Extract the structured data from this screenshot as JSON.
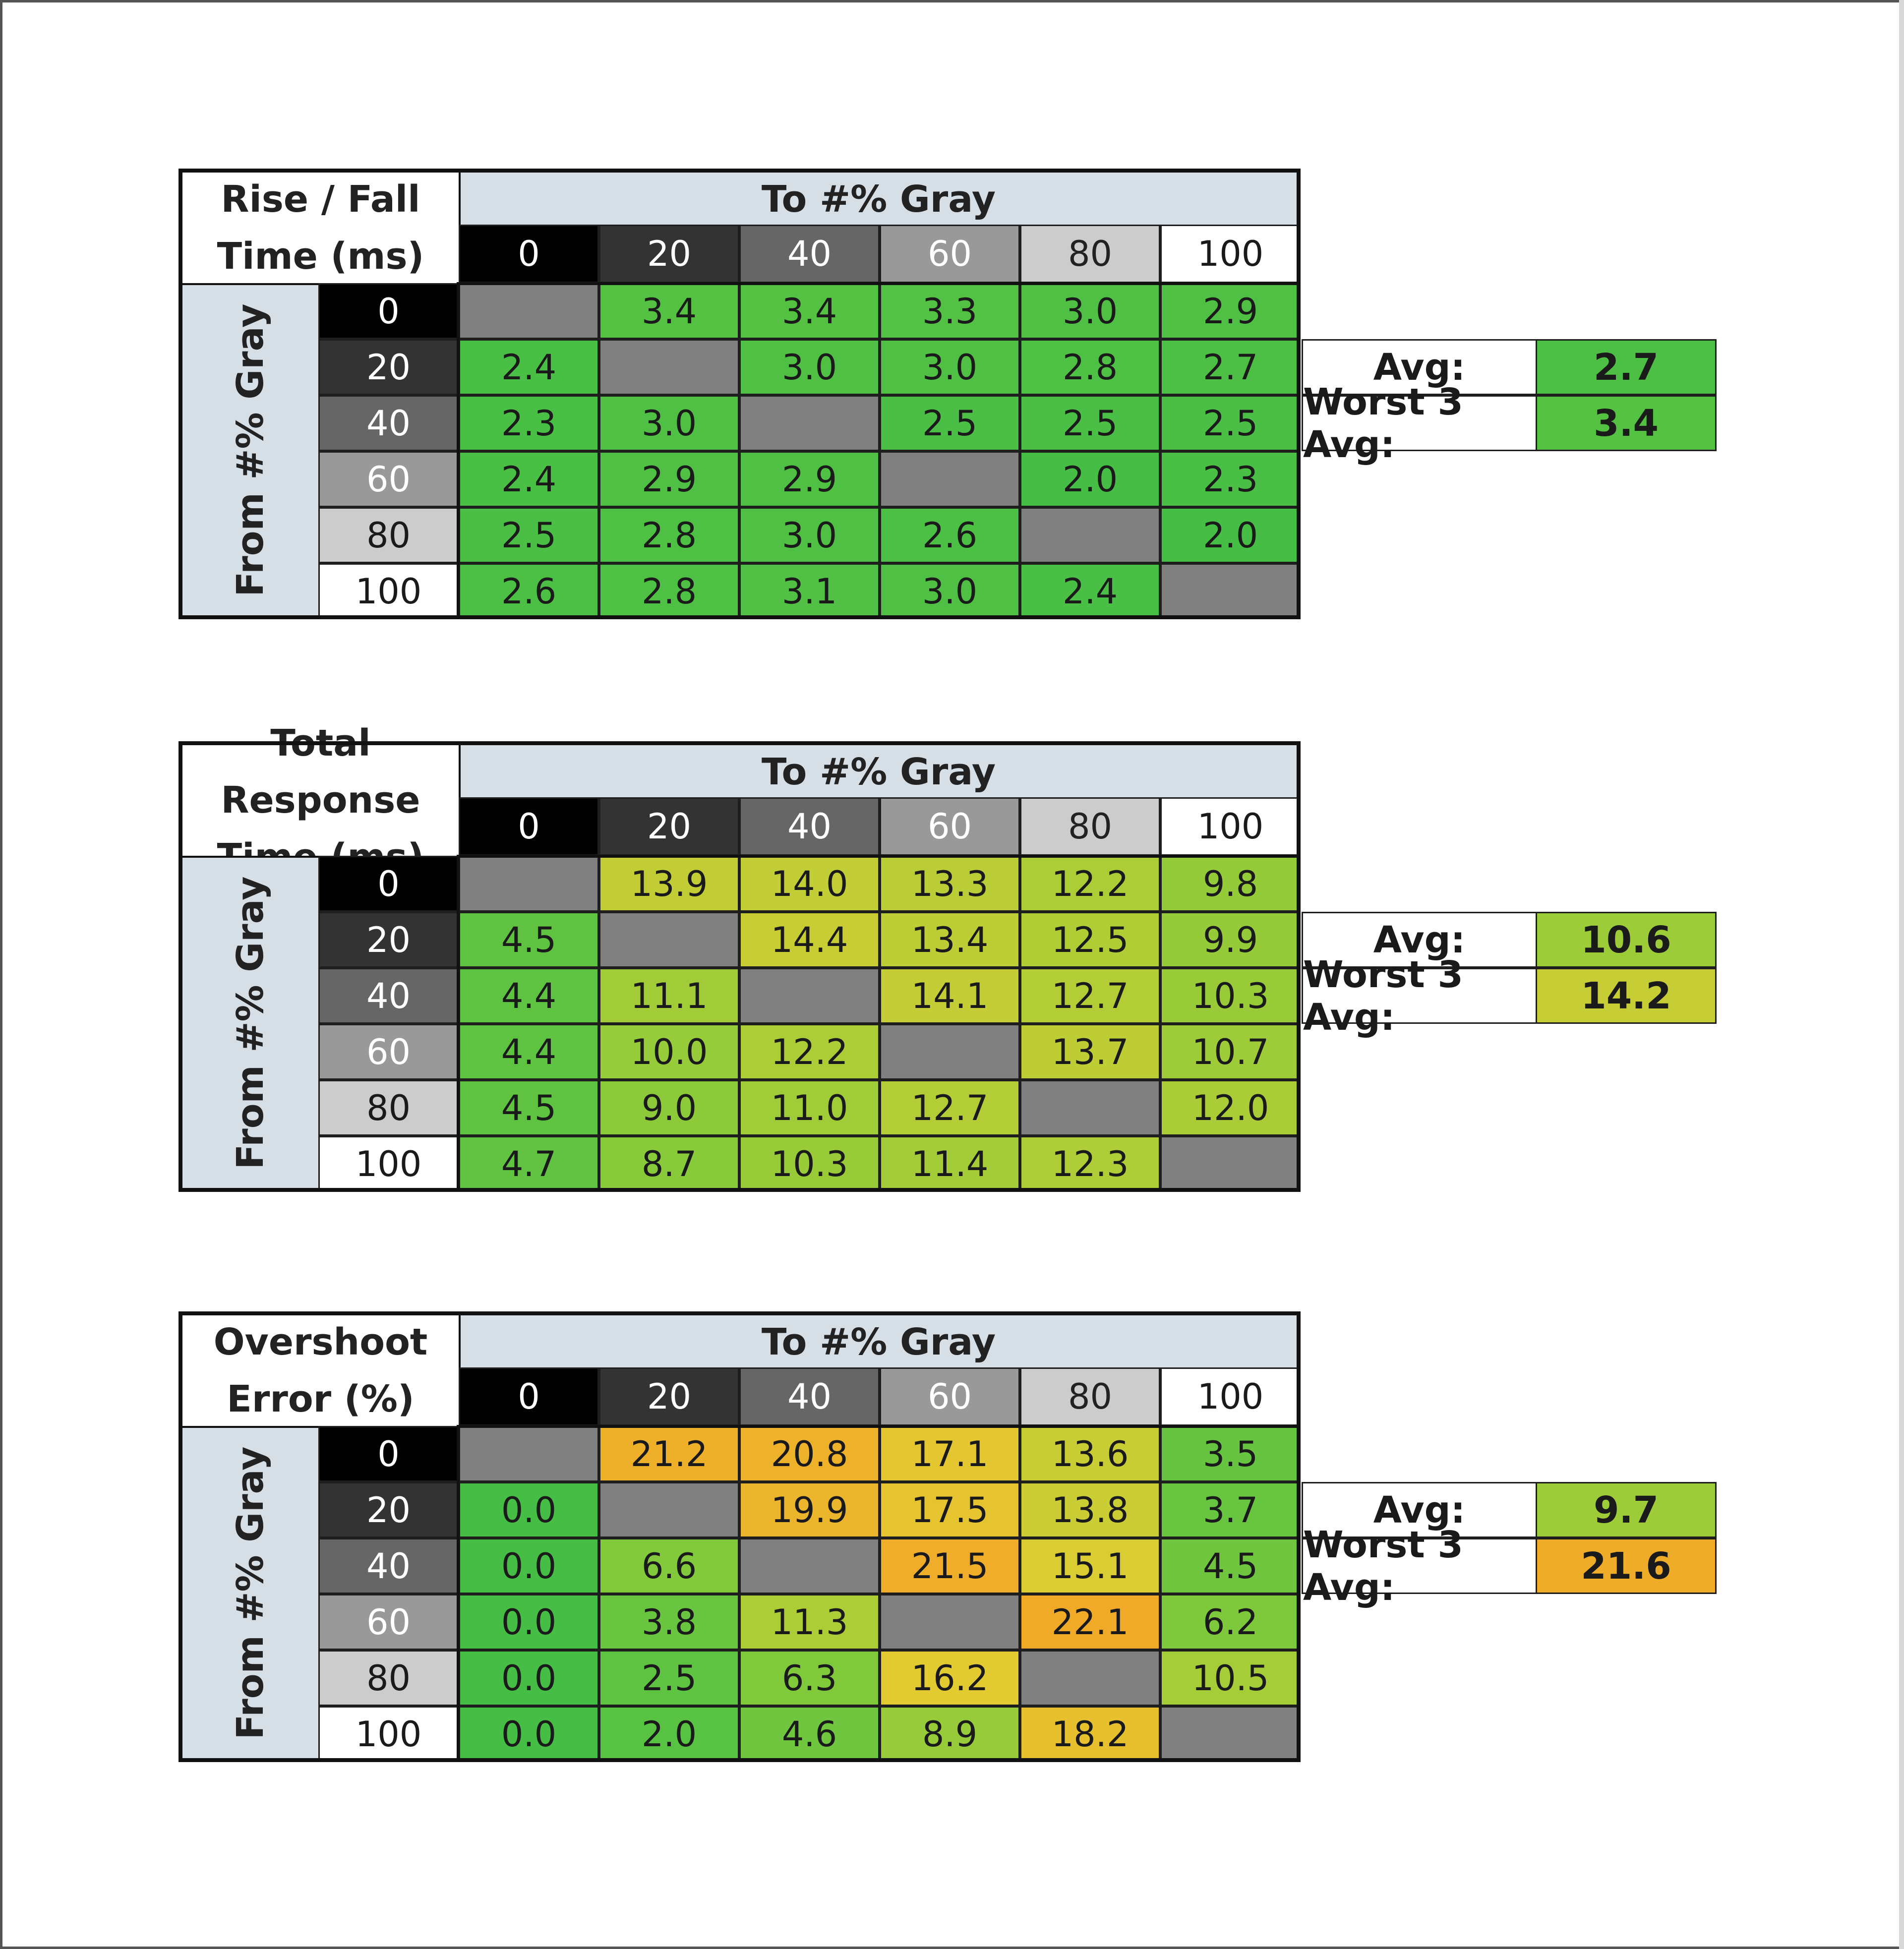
{
  "chart_data": [
    {
      "type": "heatmap",
      "title_lines": [
        "Rise / Fall",
        "Time (ms)"
      ],
      "col_header": "To #% Gray",
      "row_header": "From #% Gray",
      "columns": [
        "0",
        "20",
        "40",
        "60",
        "80",
        "100"
      ],
      "rows": [
        "0",
        "20",
        "40",
        "60",
        "80",
        "100"
      ],
      "values": [
        [
          "",
          "3.4",
          "3.4",
          "3.3",
          "3.0",
          "2.9"
        ],
        [
          "2.4",
          "",
          "3.0",
          "3.0",
          "2.8",
          "2.7"
        ],
        [
          "2.3",
          "3.0",
          "",
          "2.5",
          "2.5",
          "2.5"
        ],
        [
          "2.4",
          "2.9",
          "2.9",
          "",
          "2.0",
          "2.3"
        ],
        [
          "2.5",
          "2.8",
          "3.0",
          "2.6",
          "",
          "2.0"
        ],
        [
          "2.6",
          "2.8",
          "3.1",
          "3.0",
          "2.4",
          ""
        ]
      ],
      "summary": [
        {
          "label": "Avg:",
          "value": "2.7"
        },
        {
          "label": "Worst 3 Avg:",
          "value": "3.4"
        }
      ],
      "color_scale": {
        "low": 2.0,
        "high": 22.0
      }
    },
    {
      "type": "heatmap",
      "title_lines": [
        "Total Response",
        "Time (ms)"
      ],
      "col_header": "To #% Gray",
      "row_header": "From #% Gray",
      "columns": [
        "0",
        "20",
        "40",
        "60",
        "80",
        "100"
      ],
      "rows": [
        "0",
        "20",
        "40",
        "60",
        "80",
        "100"
      ],
      "values": [
        [
          "",
          "13.9",
          "14.0",
          "13.3",
          "12.2",
          "9.8"
        ],
        [
          "4.5",
          "",
          "14.4",
          "13.4",
          "12.5",
          "9.9"
        ],
        [
          "4.4",
          "11.1",
          "",
          "14.1",
          "12.7",
          "10.3"
        ],
        [
          "4.4",
          "10.0",
          "12.2",
          "",
          "13.7",
          "10.7"
        ],
        [
          "4.5",
          "9.0",
          "11.0",
          "12.7",
          "",
          "12.0"
        ],
        [
          "4.7",
          "8.7",
          "10.3",
          "11.4",
          "12.3",
          ""
        ]
      ],
      "summary": [
        {
          "label": "Avg:",
          "value": "10.6"
        },
        {
          "label": "Worst 3 Avg:",
          "value": "14.2"
        }
      ],
      "color_scale": {
        "low": 2.0,
        "high": 22.0
      }
    },
    {
      "type": "heatmap",
      "title_lines": [
        "Overshoot",
        "Error (%)"
      ],
      "col_header": "To #% Gray",
      "row_header": "From #% Gray",
      "columns": [
        "0",
        "20",
        "40",
        "60",
        "80",
        "100"
      ],
      "rows": [
        "0",
        "20",
        "40",
        "60",
        "80",
        "100"
      ],
      "values": [
        [
          "",
          "21.2",
          "20.8",
          "17.1",
          "13.6",
          "3.5"
        ],
        [
          "0.0",
          "",
          "19.9",
          "17.5",
          "13.8",
          "3.7"
        ],
        [
          "0.0",
          "6.6",
          "",
          "21.5",
          "15.1",
          "4.5"
        ],
        [
          "0.0",
          "3.8",
          "11.3",
          "",
          "22.1",
          "6.2"
        ],
        [
          "0.0",
          "2.5",
          "6.3",
          "16.2",
          "",
          "10.5"
        ],
        [
          "0.0",
          "2.0",
          "4.6",
          "8.9",
          "18.2",
          ""
        ]
      ],
      "summary": [
        {
          "label": "Avg:",
          "value": "9.7"
        },
        {
          "label": "Worst 3 Avg:",
          "value": "21.6"
        }
      ],
      "color_scale": {
        "low": 0.0,
        "high": 22.0
      }
    }
  ],
  "gray_swatches": {
    "0": "#000000",
    "20": "#333333",
    "40": "#666666",
    "60": "#999999",
    "80": "#cccccc",
    "100": "#ffffff"
  },
  "diagonal_color": "#808080"
}
